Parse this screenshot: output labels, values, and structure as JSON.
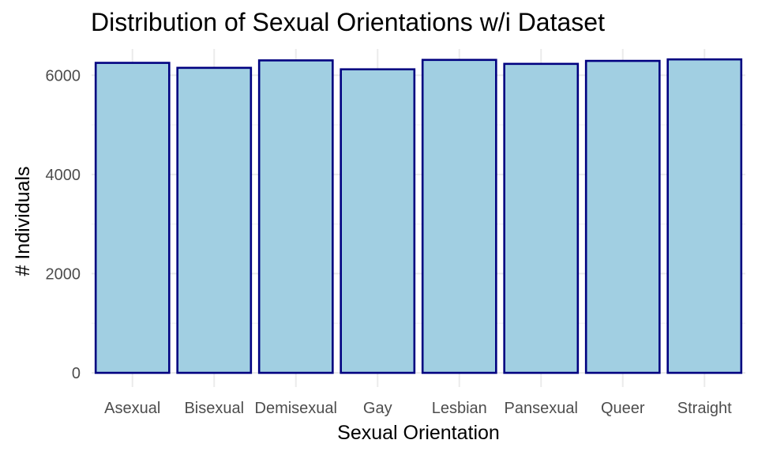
{
  "chart_data": {
    "type": "bar",
    "title": "Distribution of Sexual Orientations w/i Dataset",
    "xlabel": "Sexual Orientation",
    "ylabel": "# Individuals",
    "categories": [
      "Asexual",
      "Bisexual",
      "Demisexual",
      "Gay",
      "Lesbian",
      "Pansexual",
      "Queer",
      "Straight"
    ],
    "values": [
      6250,
      6150,
      6300,
      6120,
      6310,
      6230,
      6290,
      6320
    ],
    "ylim": [
      0,
      6530
    ],
    "yticks": [
      0,
      2000,
      4000,
      6000
    ],
    "yticks_minor": [
      1000,
      3000,
      5000
    ],
    "grid": true,
    "legend": "none",
    "colors": {
      "bar_fill": "#a1cfe2",
      "bar_stroke": "#000080"
    }
  }
}
